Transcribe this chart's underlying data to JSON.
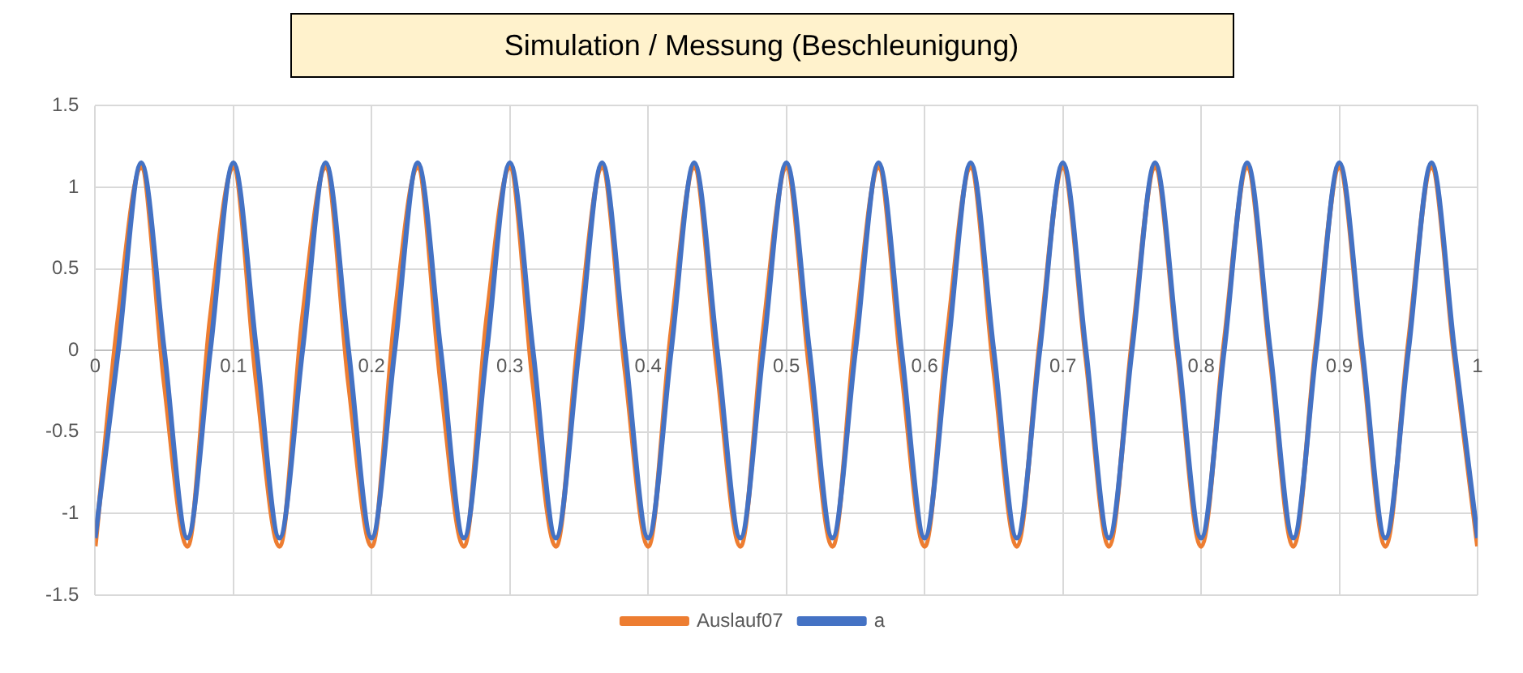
{
  "chart_data": {
    "type": "line",
    "title": "Simulation / Messung (Beschleunigung)",
    "x": [
      0,
      0.0167,
      0.0333,
      0.05,
      0.0667,
      0.0833,
      0.1,
      0.1167,
      0.1333,
      0.15,
      0.1667,
      0.1833,
      0.2,
      0.2167,
      0.2333,
      0.25,
      0.2667,
      0.2833,
      0.3,
      0.3167,
      0.3333,
      0.35,
      0.3667,
      0.3833,
      0.4,
      0.4167,
      0.4333,
      0.45,
      0.4667,
      0.4833,
      0.5,
      0.5167,
      0.5333,
      0.55,
      0.5667,
      0.5833,
      0.6,
      0.6167,
      0.6333,
      0.65,
      0.6667,
      0.6833,
      0.7,
      0.7167,
      0.7333,
      0.75,
      0.7667,
      0.7833,
      0.8,
      0.8167,
      0.8333,
      0.85,
      0.8667,
      0.8833,
      0.9,
      0.9167,
      0.9333,
      0.95,
      0.9667,
      0.9833,
      1
    ],
    "series": [
      {
        "name": "Auslauf07",
        "color": "#ed7d31",
        "values": [
          -1.2,
          0.2,
          1.12,
          -0.2,
          -1.2,
          0.2,
          1.12,
          -0.2,
          -1.2,
          0.2,
          1.12,
          -0.2,
          -1.2,
          0.2,
          1.12,
          -0.2,
          -1.2,
          0.2,
          1.12,
          -0.2,
          -1.2,
          0.12,
          1.12,
          -0.12,
          -1.2,
          0.12,
          1.12,
          -0.12,
          -1.2,
          0.12,
          1.12,
          -0.12,
          -1.2,
          0.12,
          1.12,
          -0.12,
          -1.2,
          0.12,
          1.12,
          -0.12,
          -1.2,
          0.05,
          1.12,
          -0.05,
          -1.2,
          0.05,
          1.12,
          -0.05,
          -1.2,
          0.05,
          1.12,
          -0.05,
          -1.2,
          0.05,
          1.12,
          -0.05,
          -1.2,
          0.05,
          1.12,
          -0.05,
          -1.2
        ]
      },
      {
        "name": "a",
        "color": "#4472c4",
        "values": [
          -1.15,
          0,
          1.15,
          0,
          -1.15,
          0,
          1.15,
          0,
          -1.15,
          0,
          1.15,
          0,
          -1.15,
          0,
          1.15,
          0,
          -1.15,
          0,
          1.15,
          0,
          -1.15,
          0,
          1.15,
          0,
          -1.15,
          0,
          1.15,
          0,
          -1.15,
          0,
          1.15,
          0,
          -1.15,
          0,
          1.15,
          0,
          -1.15,
          0,
          1.15,
          0,
          -1.15,
          0,
          1.15,
          0,
          -1.15,
          0,
          1.15,
          0,
          -1.15,
          0,
          1.15,
          0,
          -1.15,
          0,
          1.15,
          0,
          -1.15,
          0,
          1.15,
          0,
          -1.15
        ]
      }
    ],
    "xlim": [
      0,
      1
    ],
    "xticks": [
      0,
      0.1,
      0.2,
      0.3,
      0.4,
      0.5,
      0.6,
      0.7,
      0.8,
      0.9,
      1
    ],
    "ylim": [
      -1.5,
      1.5
    ],
    "yticks": [
      -1.5,
      -1,
      -0.5,
      0,
      0.5,
      1,
      1.5
    ],
    "grid": true,
    "legend": "bottom",
    "marker": "none",
    "line_style": "solid"
  }
}
